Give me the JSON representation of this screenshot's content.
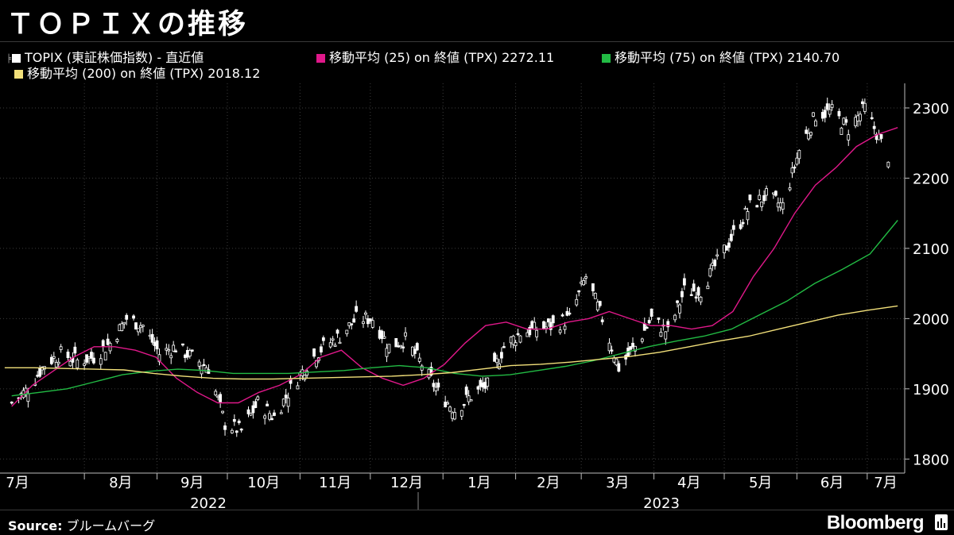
{
  "title": "ＴＯＰＩＸの推移",
  "legend": [
    {
      "label": "TOPIX (東証株価指数) - 直近値",
      "color": "#ffffff",
      "icon": "candlestick-icon"
    },
    {
      "label": "移動平均 (25)  on 終値 (TPX) 2272.11",
      "color": "#e0188a"
    },
    {
      "label": "移動平均 (75)  on 終値 (TPX) 2140.70",
      "color": "#22bb44"
    },
    {
      "label": "移動平均 (200)  on 終値 (TPX)  2018.12",
      "color": "#f2e07a"
    }
  ],
  "source_label": "Source:",
  "source_text": "ブルームバーグ",
  "brand": "Bloomberg",
  "chart_data": {
    "type": "candlestick",
    "title": "ＴＯＰＩＸの推移",
    "ylim": [
      1780,
      2335
    ],
    "y_ticks": [
      1800,
      1900,
      2000,
      2100,
      2200,
      2300
    ],
    "x_month_labels": [
      "7月",
      "8月",
      "9月",
      "10月",
      "11月",
      "12月",
      "1月",
      "2月",
      "3月",
      "4月",
      "5月",
      "6月",
      "7月"
    ],
    "years": [
      "2022",
      "2023"
    ],
    "series_close": [
      {
        "date": "2022-07-01",
        "v": 1880
      },
      {
        "date": "2022-07-08",
        "v": 1900
      },
      {
        "date": "2022-07-15",
        "v": 1935
      },
      {
        "date": "2022-07-22",
        "v": 1950
      },
      {
        "date": "2022-07-29",
        "v": 1940
      },
      {
        "date": "2022-08-05",
        "v": 1945
      },
      {
        "date": "2022-08-12",
        "v": 1965
      },
      {
        "date": "2022-08-19",
        "v": 2000
      },
      {
        "date": "2022-08-26",
        "v": 1990
      },
      {
        "date": "2022-09-02",
        "v": 1950
      },
      {
        "date": "2022-09-09",
        "v": 1960
      },
      {
        "date": "2022-09-16",
        "v": 1945
      },
      {
        "date": "2022-09-23",
        "v": 1930
      },
      {
        "date": "2022-09-30",
        "v": 1850
      },
      {
        "date": "2022-10-07",
        "v": 1840
      },
      {
        "date": "2022-10-14",
        "v": 1880
      },
      {
        "date": "2022-10-21",
        "v": 1860
      },
      {
        "date": "2022-10-28",
        "v": 1900
      },
      {
        "date": "2022-11-04",
        "v": 1935
      },
      {
        "date": "2022-11-11",
        "v": 1960
      },
      {
        "date": "2022-11-18",
        "v": 1975
      },
      {
        "date": "2022-11-25",
        "v": 2000
      },
      {
        "date": "2022-12-02",
        "v": 2000
      },
      {
        "date": "2022-12-09",
        "v": 1960
      },
      {
        "date": "2022-12-16",
        "v": 1970
      },
      {
        "date": "2022-12-23",
        "v": 1935
      },
      {
        "date": "2022-12-30",
        "v": 1895
      },
      {
        "date": "2023-01-06",
        "v": 1870
      },
      {
        "date": "2023-01-13",
        "v": 1890
      },
      {
        "date": "2023-01-20",
        "v": 1905
      },
      {
        "date": "2023-01-27",
        "v": 1960
      },
      {
        "date": "2023-02-03",
        "v": 1980
      },
      {
        "date": "2023-02-10",
        "v": 1985
      },
      {
        "date": "2023-02-17",
        "v": 1990
      },
      {
        "date": "2023-02-24",
        "v": 2000
      },
      {
        "date": "2023-03-03",
        "v": 2060
      },
      {
        "date": "2023-03-10",
        "v": 2000
      },
      {
        "date": "2023-03-17",
        "v": 1930
      },
      {
        "date": "2023-03-24",
        "v": 1960
      },
      {
        "date": "2023-03-31",
        "v": 2000
      },
      {
        "date": "2023-04-07",
        "v": 1980
      },
      {
        "date": "2023-04-14",
        "v": 2040
      },
      {
        "date": "2023-04-21",
        "v": 2040
      },
      {
        "date": "2023-04-28",
        "v": 2080
      },
      {
        "date": "2023-05-05",
        "v": 2120
      },
      {
        "date": "2023-05-12",
        "v": 2160
      },
      {
        "date": "2023-05-19",
        "v": 2175
      },
      {
        "date": "2023-05-26",
        "v": 2160
      },
      {
        "date": "2023-06-02",
        "v": 2240
      },
      {
        "date": "2023-06-09",
        "v": 2290
      },
      {
        "date": "2023-06-16",
        "v": 2295
      },
      {
        "date": "2023-06-23",
        "v": 2270
      },
      {
        "date": "2023-06-30",
        "v": 2300
      },
      {
        "date": "2023-07-07",
        "v": 2250
      },
      {
        "date": "2023-07-11",
        "v": 2225
      }
    ],
    "series": [
      {
        "name": "移動平均 (25)  on 終値 (TPX)",
        "last": 2272.11,
        "color": "#e0188a",
        "values": [
          1875,
          1905,
          1925,
          1945,
          1960,
          1960,
          1955,
          1945,
          1915,
          1895,
          1880,
          1880,
          1895,
          1905,
          1920,
          1945,
          1955,
          1930,
          1915,
          1905,
          1915,
          1935,
          1965,
          1990,
          1995,
          1985,
          1985,
          1995,
          2000,
          2010,
          2000,
          1990,
          1990,
          1985,
          1990,
          2010,
          2060,
          2100,
          2150,
          2190,
          2215,
          2245,
          2262,
          2272
        ]
      },
      {
        "name": "移動平均 (75)  on 終値 (TPX)",
        "last": 2140.7,
        "color": "#22bb44",
        "values": [
          1890,
          1895,
          1900,
          1910,
          1920,
          1925,
          1928,
          1926,
          1922,
          1922,
          1922,
          1924,
          1926,
          1930,
          1933,
          1930,
          1922,
          1918,
          1920,
          1926,
          1932,
          1940,
          1950,
          1960,
          1968,
          1975,
          1985,
          2005,
          2025,
          2050,
          2070,
          2092,
          2140
        ]
      },
      {
        "name": "移動平均 (200)  on 終値 (TPX)",
        "last": 2018.12,
        "color": "#f2e07a",
        "values": [
          1930,
          1930,
          1929,
          1928,
          1927,
          1922,
          1918,
          1915,
          1914,
          1914,
          1915,
          1916,
          1917,
          1918,
          1920,
          1923,
          1928,
          1933,
          1935,
          1938,
          1942,
          1946,
          1952,
          1960,
          1968,
          1975,
          1985,
          1995,
          2005,
          2012,
          2018
        ]
      }
    ]
  }
}
